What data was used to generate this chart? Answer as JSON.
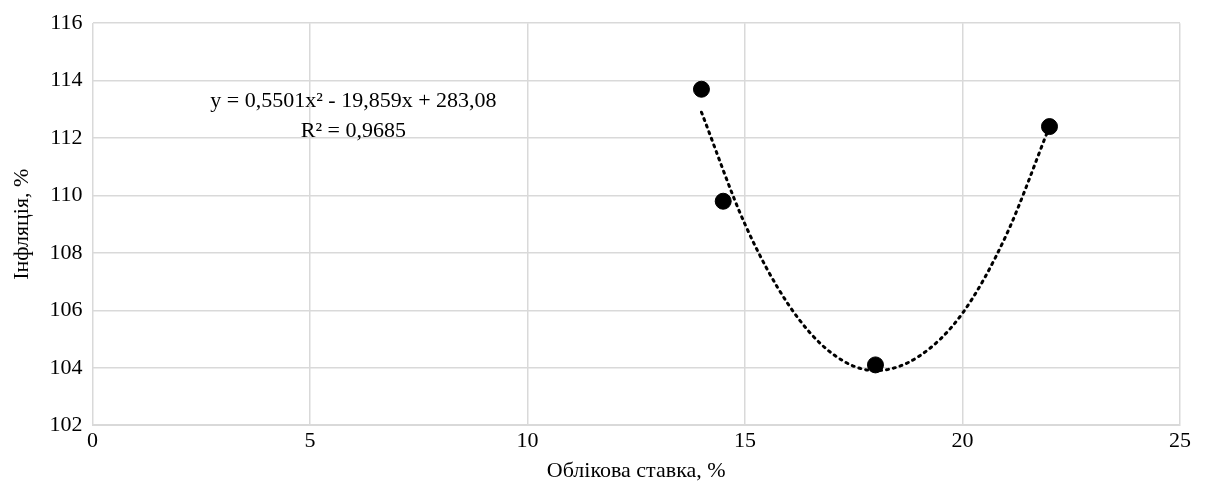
{
  "chart_data": {
    "type": "scatter",
    "xlabel": "Облікова ставка, %",
    "ylabel": "Інфляція, %",
    "x": [
      14,
      14.5,
      18,
      22
    ],
    "series": [
      {
        "type": "scatter",
        "color": "#000000",
        "marker": "circle",
        "values": [
          113.7,
          109.8,
          104.1,
          112.4
        ]
      },
      {
        "type": "line",
        "color": "#000000",
        "line_style": "dotted",
        "marker": "none",
        "x": [
          14,
          15,
          16,
          17,
          18,
          19,
          20,
          21,
          22
        ],
        "values": [
          112.9,
          109.0,
          106.2,
          104.5,
          103.9,
          104.4,
          105.9,
          108.6,
          112.4
        ]
      }
    ],
    "xlim": [
      0,
      25
    ],
    "xticks": [
      0,
      5,
      10,
      15,
      20,
      25
    ],
    "ylim": [
      102,
      116
    ],
    "yticks": [
      102,
      104,
      106,
      108,
      110,
      112,
      114,
      116
    ],
    "grid": true,
    "annotations": [
      "y = 0,5501x² - 19,859x + 283,08",
      "R² = 0,9685"
    ]
  }
}
